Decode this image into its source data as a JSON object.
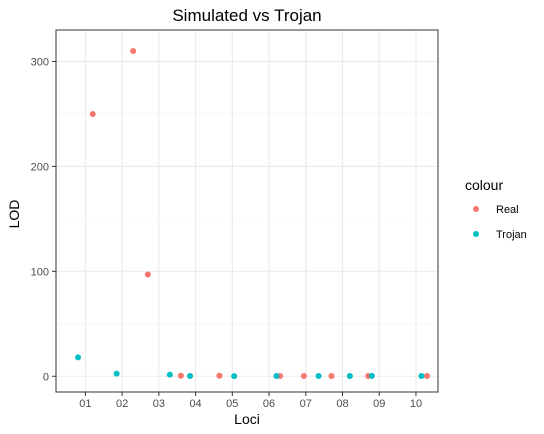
{
  "chart_data": {
    "type": "scatter",
    "title": "Simulated vs Trojan",
    "xlabel": "Loci",
    "ylabel": "LOD",
    "xlim": [
      0.2,
      10.6
    ],
    "ylim": [
      -15,
      330
    ],
    "x_ticks": [
      {
        "value": 1,
        "label": "01"
      },
      {
        "value": 2,
        "label": "02"
      },
      {
        "value": 3,
        "label": "03"
      },
      {
        "value": 4,
        "label": "04"
      },
      {
        "value": 5,
        "label": "05"
      },
      {
        "value": 6,
        "label": "06"
      },
      {
        "value": 7,
        "label": "07"
      },
      {
        "value": 8,
        "label": "08"
      },
      {
        "value": 9,
        "label": "09"
      },
      {
        "value": 10,
        "label": "10"
      }
    ],
    "y_ticks": [
      0,
      100,
      200,
      300
    ],
    "grid": true,
    "legend": {
      "title": "colour",
      "placement": "right"
    },
    "series": [
      {
        "name": "Real",
        "color": "#F8766D",
        "points": [
          {
            "x": 1.2,
            "y": 250
          },
          {
            "x": 2.3,
            "y": 310
          },
          {
            "x": 2.7,
            "y": 97
          },
          {
            "x": 3.6,
            "y": 0.5
          },
          {
            "x": 4.65,
            "y": 0.5
          },
          {
            "x": 6.3,
            "y": 0.3
          },
          {
            "x": 6.95,
            "y": 0.2
          },
          {
            "x": 7.7,
            "y": 0.2
          },
          {
            "x": 8.7,
            "y": 0.3
          },
          {
            "x": 10.3,
            "y": 0.2
          }
        ]
      },
      {
        "name": "Trojan",
        "color": "#00BFC4",
        "points": [
          {
            "x": 0.8,
            "y": 18
          },
          {
            "x": 1.85,
            "y": 2.5
          },
          {
            "x": 3.3,
            "y": 1.5
          },
          {
            "x": 3.85,
            "y": 0.2
          },
          {
            "x": 5.05,
            "y": 0.1
          },
          {
            "x": 6.2,
            "y": 0.3
          },
          {
            "x": 7.35,
            "y": 0.2
          },
          {
            "x": 8.2,
            "y": 0.2
          },
          {
            "x": 8.8,
            "y": 0.4
          },
          {
            "x": 10.15,
            "y": 0.3
          }
        ]
      }
    ]
  }
}
